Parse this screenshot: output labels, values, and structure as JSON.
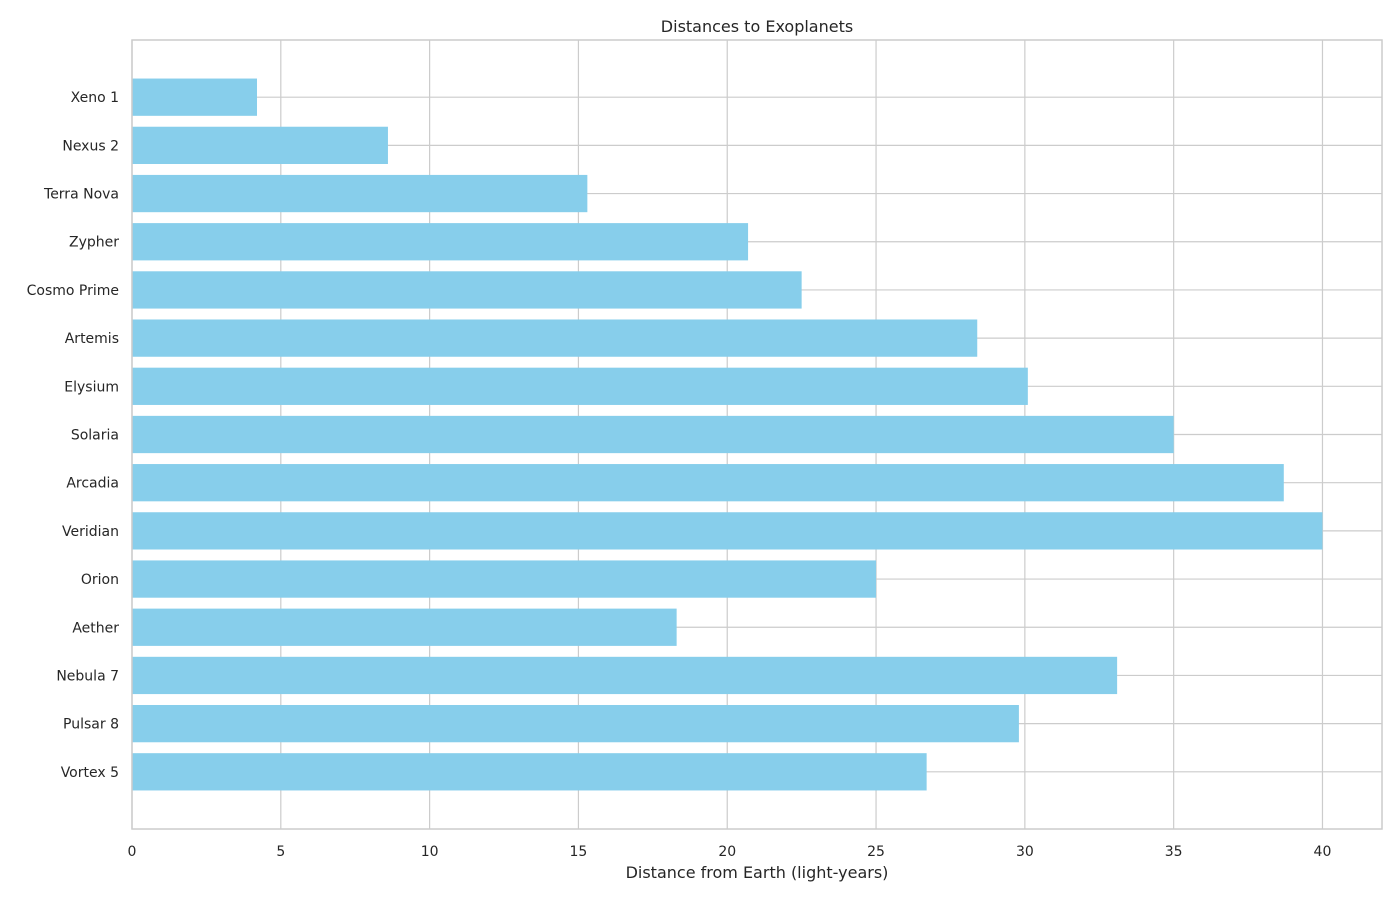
{
  "chart_data": {
    "type": "bar",
    "orientation": "horizontal",
    "title": "Distances to Exoplanets",
    "xlabel": "Distance from Earth (light-years)",
    "ylabel": "",
    "categories": [
      "Xeno 1",
      "Nexus 2",
      "Terra Nova",
      "Zypher",
      "Cosmo Prime",
      "Artemis",
      "Elysium",
      "Solaria",
      "Arcadia",
      "Veridian",
      "Orion",
      "Aether",
      "Nebula 7",
      "Pulsar 8",
      "Vortex 5"
    ],
    "values": [
      4.2,
      8.6,
      15.3,
      20.7,
      22.5,
      28.4,
      30.1,
      35.0,
      38.7,
      40.0,
      25.0,
      18.3,
      33.1,
      29.8,
      26.7
    ],
    "xlim": [
      0,
      42
    ],
    "xticks": [
      0,
      5,
      10,
      15,
      20,
      25,
      30,
      35,
      40
    ],
    "grid": true,
    "bar_color": "#87ceeb",
    "grid_color": "#cccccc",
    "text_color": "#262626"
  }
}
